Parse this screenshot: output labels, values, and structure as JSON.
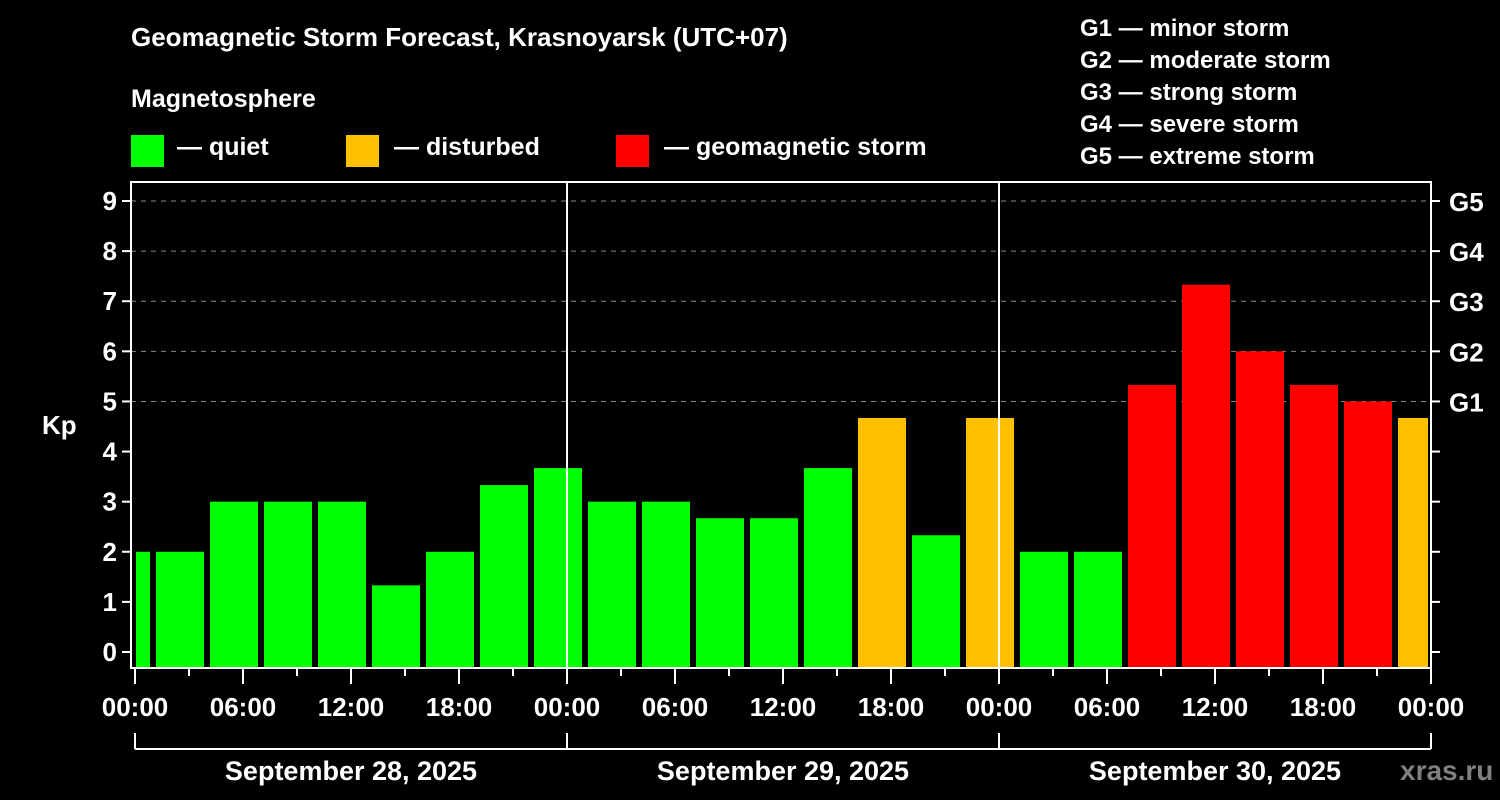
{
  "header": {
    "title": "Geomagnetic Storm Forecast, Krasnoyarsk (UTC+07)",
    "subtitle": "Magnetosphere"
  },
  "legend": [
    {
      "label": "— quiet",
      "color": "#00ff00"
    },
    {
      "label": "— disturbed",
      "color": "#ffc000"
    },
    {
      "label": "— geomagnetic storm",
      "color": "#ff0000"
    }
  ],
  "storm_scale": [
    "G1 — minor storm",
    "G2 — moderate storm",
    "G3 — strong storm",
    "G4 — severe storm",
    "G5 — extreme storm"
  ],
  "watermark": "xras.ru",
  "chart_data": {
    "type": "bar",
    "title": "Geomagnetic Storm Forecast, Krasnoyarsk (UTC+07)",
    "xlabel": "",
    "ylabel": "Kp",
    "ylim": [
      0,
      9
    ],
    "grid": "horizontal dashed at Kp 5-9",
    "y_ticks": [
      0,
      1,
      2,
      3,
      4,
      5,
      6,
      7,
      8,
      9
    ],
    "right_ticks": [
      {
        "kp": 5,
        "label": "G1"
      },
      {
        "kp": 6,
        "label": "G2"
      },
      {
        "kp": 7,
        "label": "G3"
      },
      {
        "kp": 8,
        "label": "G4"
      },
      {
        "kp": 9,
        "label": "G5"
      }
    ],
    "x_tick_labels": [
      "00:00",
      "06:00",
      "12:00",
      "18:00",
      "00:00",
      "06:00",
      "12:00",
      "18:00",
      "00:00",
      "06:00",
      "12:00",
      "18:00",
      "00:00"
    ],
    "dates": [
      "September 28, 2025",
      "September 29, 2025",
      "September 30, 2025"
    ],
    "categories": [
      "Sep28 22:00-01:00",
      "Sep28 01:00-04:00",
      "Sep28 04:00-07:00",
      "Sep28 07:00-10:00",
      "Sep28 10:00-13:00",
      "Sep28 13:00-16:00",
      "Sep28 16:00-19:00",
      "Sep28 19:00-22:00",
      "Sep28 22:00-01:00",
      "Sep29 01:00-04:00",
      "Sep29 04:00-07:00",
      "Sep29 07:00-10:00",
      "Sep29 10:00-13:00",
      "Sep29 13:00-16:00",
      "Sep29 16:00-19:00",
      "Sep29 19:00-22:00",
      "Sep29 22:00-01:00",
      "Sep30 01:00-04:00",
      "Sep30 04:00-07:00",
      "Sep30 07:00-10:00",
      "Sep30 10:00-13:00",
      "Sep30 13:00-16:00",
      "Sep30 16:00-19:00",
      "Sep30 19:00-22:00",
      "Sep30 22:00-01:00"
    ],
    "values": [
      2,
      2,
      3,
      3,
      3,
      1.33,
      2,
      3.33,
      3.67,
      3,
      3,
      2.67,
      2.67,
      3.67,
      4.67,
      2.33,
      4.67,
      2,
      2,
      5.33,
      7.33,
      6,
      5.33,
      5,
      4.67
    ],
    "colors": [
      "quiet",
      "quiet",
      "quiet",
      "quiet",
      "quiet",
      "quiet",
      "quiet",
      "quiet",
      "quiet",
      "quiet",
      "quiet",
      "quiet",
      "quiet",
      "quiet",
      "disturbed",
      "quiet",
      "disturbed",
      "quiet",
      "quiet",
      "storm",
      "storm",
      "storm",
      "storm",
      "storm",
      "disturbed"
    ],
    "color_map": {
      "quiet": "#00ff00",
      "disturbed": "#ffc000",
      "storm": "#ff0000"
    }
  }
}
